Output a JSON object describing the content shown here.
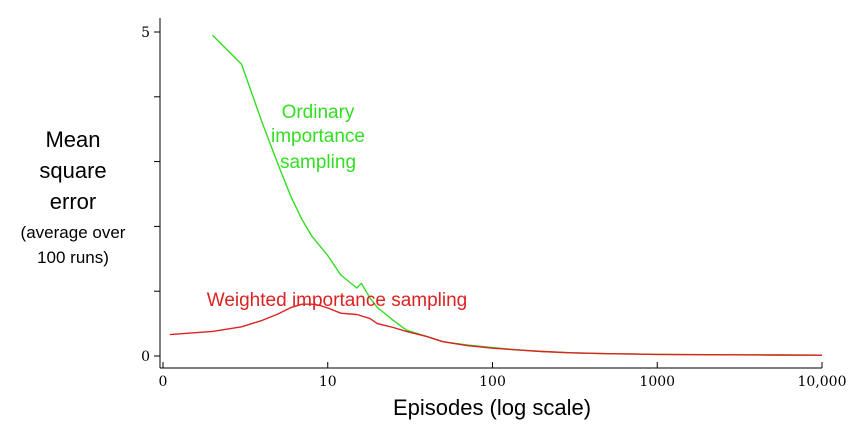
{
  "chart_data": {
    "type": "line",
    "title": "",
    "ylabel_lines": [
      "Mean",
      "square",
      "error"
    ],
    "ylabel_sub_lines": [
      "(average over",
      "100 runs)"
    ],
    "xlabel": "Episodes (log scale)",
    "x_scale": "log",
    "xlim": [
      1,
      10000
    ],
    "ylim": [
      0,
      5
    ],
    "x_ticks": [
      {
        "value": 1,
        "label": "0"
      },
      {
        "value": 10,
        "label": "10"
      },
      {
        "value": 100,
        "label": "100"
      },
      {
        "value": 1000,
        "label": "1000"
      },
      {
        "value": 10000,
        "label": "10,000"
      }
    ],
    "y_ticks": [
      {
        "value": 0,
        "label": "0"
      },
      {
        "value": 1,
        "label": ""
      },
      {
        "value": 2,
        "label": ""
      },
      {
        "value": 3,
        "label": ""
      },
      {
        "value": 4,
        "label": ""
      },
      {
        "value": 5,
        "label": "5"
      }
    ],
    "grid": false,
    "legend": "none",
    "series": [
      {
        "name": "Ordinary importance sampling",
        "label_lines": [
          "Ordinary",
          "importance",
          "sampling"
        ],
        "color": "#33dd22",
        "x": [
          2,
          3,
          4,
          5,
          6,
          7,
          8,
          10,
          12,
          15,
          16,
          18,
          20,
          25,
          30,
          40,
          50,
          70,
          100,
          150,
          200,
          300,
          500,
          1000,
          2000,
          5000,
          10000
        ],
        "y": [
          4.95,
          4.5,
          3.6,
          2.95,
          2.45,
          2.1,
          1.85,
          1.55,
          1.25,
          1.05,
          1.12,
          0.9,
          0.75,
          0.55,
          0.4,
          0.3,
          0.22,
          0.17,
          0.13,
          0.09,
          0.07,
          0.05,
          0.035,
          0.025,
          0.02,
          0.015,
          0.012
        ]
      },
      {
        "name": "Weighted importance sampling",
        "label_lines": [
          "Weighted importance sampling"
        ],
        "color": "#dd2222",
        "x": [
          1.1,
          2,
          3,
          4,
          5,
          6,
          7,
          8,
          9,
          10,
          12,
          15,
          18,
          20,
          25,
          30,
          40,
          50,
          70,
          100,
          150,
          200,
          300,
          500,
          1000,
          2000,
          5000,
          10000
        ],
        "y": [
          0.33,
          0.38,
          0.45,
          0.55,
          0.65,
          0.75,
          0.8,
          0.8,
          0.78,
          0.74,
          0.66,
          0.64,
          0.58,
          0.5,
          0.44,
          0.38,
          0.3,
          0.22,
          0.16,
          0.12,
          0.09,
          0.07,
          0.05,
          0.035,
          0.025,
          0.02,
          0.015,
          0.012
        ]
      }
    ]
  }
}
